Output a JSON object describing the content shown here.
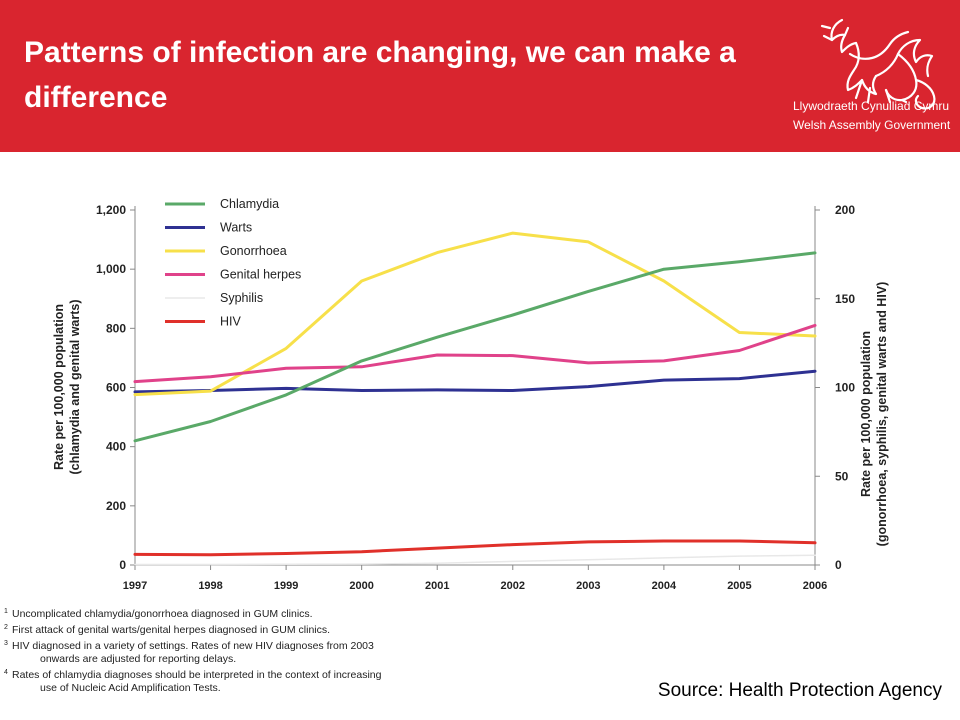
{
  "header": {
    "title": "Patterns of infection are changing, we can make a difference",
    "logo_line1": "Llywodraeth Cynulliad Cymru",
    "logo_line2": "Welsh Assembly Government",
    "background": "#d9252f"
  },
  "chart_data": {
    "type": "line",
    "x": [
      "1997",
      "1998",
      "1999",
      "2000",
      "2001",
      "2002",
      "2003",
      "2004",
      "2005",
      "2006"
    ],
    "ylabel_left": "Rate per 100,000 population (chlamydia and genital warts)",
    "ylabel_right": "Rate per 100,000 population (gonorrhoea, syphilis, genital warts and HIV)",
    "ylim_left": [
      0,
      1200
    ],
    "yticks_left": [
      "0",
      "200",
      "400",
      "600",
      "800",
      "1,000",
      "1,200"
    ],
    "ylim_right": [
      0,
      200
    ],
    "yticks_right": [
      "0",
      "50",
      "100",
      "150",
      "200"
    ],
    "legend_position": "top-left",
    "series": [
      {
        "name": "Chlamydia",
        "axis": "left",
        "color": "#5aa968",
        "values": [
          420,
          485,
          575,
          690,
          770,
          845,
          925,
          1000,
          1025,
          1055
        ]
      },
      {
        "name": "Warts",
        "axis": "left",
        "color": "#2e3192",
        "values": [
          585,
          590,
          597,
          590,
          592,
          590,
          603,
          625,
          630,
          655
        ]
      },
      {
        "name": "Gonorrhoea",
        "axis": "right",
        "color": "#f7e04a",
        "values": [
          96,
          98,
          122,
          160,
          176,
          187,
          182,
          160,
          131,
          129
        ]
      },
      {
        "name": "Genital herpes",
        "axis": "left",
        "color": "#e0428a",
        "values": [
          620,
          636,
          665,
          670,
          710,
          708,
          683,
          690,
          725,
          810
        ]
      },
      {
        "name": "Syphilis",
        "axis": "right",
        "color": "#e8e8e8",
        "values": [
          0.3,
          0.3,
          0.4,
          0.5,
          1.0,
          2.0,
          3.0,
          4.0,
          5.0,
          5.5
        ]
      },
      {
        "name": "HIV",
        "axis": "right",
        "color": "#e0302a",
        "values": [
          6.0,
          5.8,
          6.5,
          7.5,
          9.5,
          11.5,
          13.0,
          13.5,
          13.5,
          12.5
        ]
      }
    ]
  },
  "footnotes": [
    {
      "num": "1",
      "text": "Uncomplicated chlamydia/gonorrhoea diagnosed in GUM clinics.",
      "text2": ""
    },
    {
      "num": "2",
      "text": "First attack of genital warts/genital herpes diagnosed in GUM clinics.",
      "text2": ""
    },
    {
      "num": "3",
      "text": "HIV diagnosed in a variety of settings. Rates of new HIV diagnoses from 2003",
      "text2": "onwards are adjusted for reporting delays."
    },
    {
      "num": "4",
      "text": "Rates of chlamydia diagnoses should be interpreted in the context of increasing",
      "text2": "use of Nucleic Acid Amplification Tests."
    }
  ],
  "source": "Source: Health Protection Agency"
}
